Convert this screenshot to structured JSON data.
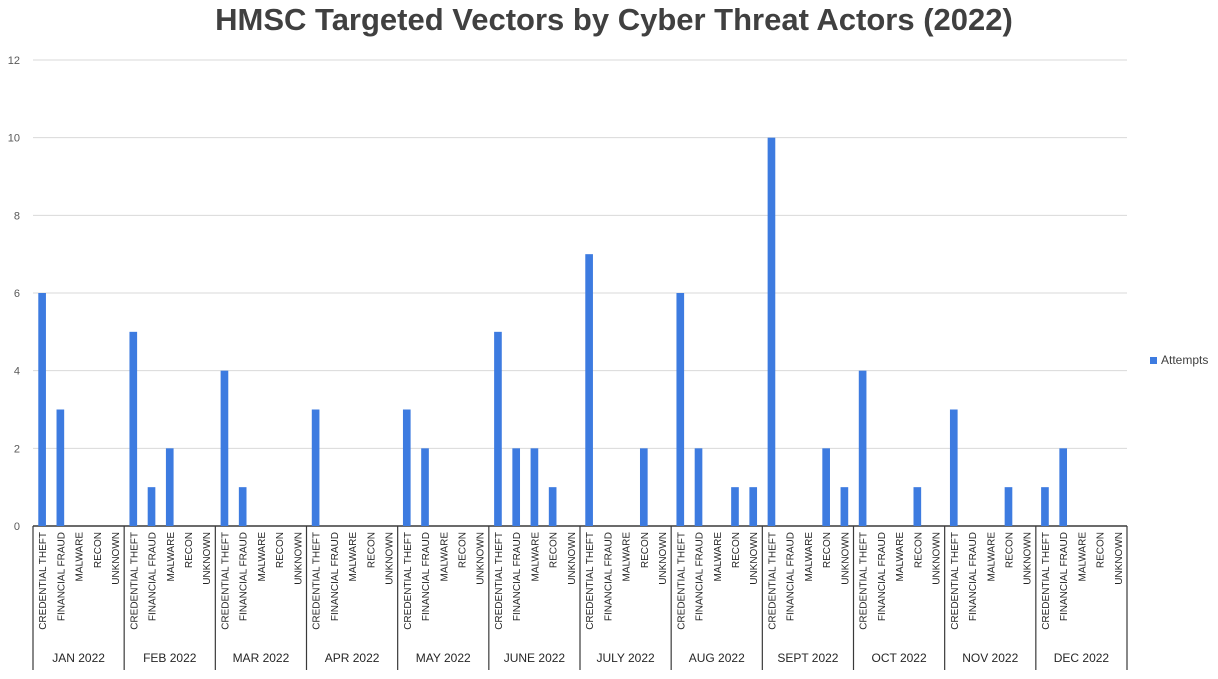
{
  "chart_data": {
    "type": "bar",
    "title": "HMSC Targeted Vectors by Cyber Threat Actors (2022)",
    "xlabel": "",
    "ylabel": "",
    "ylim": [
      0,
      12
    ],
    "yticks": [
      0,
      2,
      4,
      6,
      8,
      10,
      12
    ],
    "grid": true,
    "legend_position": "right",
    "bar_color": "#3d7be0",
    "subcategories": [
      "CREDENTIAL THEFT",
      "FINANCIAL FRAUD",
      "MALWARE",
      "RECON",
      "UNKNOWN"
    ],
    "groups": [
      {
        "label": "JAN 2022",
        "values": [
          6,
          3,
          0,
          0,
          0
        ]
      },
      {
        "label": "FEB 2022",
        "values": [
          5,
          1,
          2,
          0,
          0
        ]
      },
      {
        "label": "MAR 2022",
        "values": [
          4,
          1,
          0,
          0,
          0
        ]
      },
      {
        "label": "APR 2022",
        "values": [
          3,
          0,
          0,
          0,
          0
        ]
      },
      {
        "label": "MAY 2022",
        "values": [
          3,
          2,
          0,
          0,
          0
        ]
      },
      {
        "label": "JUNE 2022",
        "values": [
          5,
          2,
          2,
          1,
          0
        ]
      },
      {
        "label": "JULY 2022",
        "values": [
          7,
          0,
          0,
          2,
          0
        ]
      },
      {
        "label": "AUG 2022",
        "values": [
          6,
          2,
          0,
          1,
          1
        ]
      },
      {
        "label": "SEPT 2022",
        "values": [
          10,
          0,
          0,
          2,
          1
        ]
      },
      {
        "label": "OCT 2022",
        "values": [
          4,
          0,
          0,
          1,
          0
        ]
      },
      {
        "label": "NOV 2022",
        "values": [
          3,
          0,
          0,
          1,
          0
        ]
      },
      {
        "label": "DEC 2022",
        "values": [
          1,
          2,
          0,
          0,
          0
        ]
      }
    ],
    "series": [
      {
        "name": "Attempts"
      }
    ]
  }
}
